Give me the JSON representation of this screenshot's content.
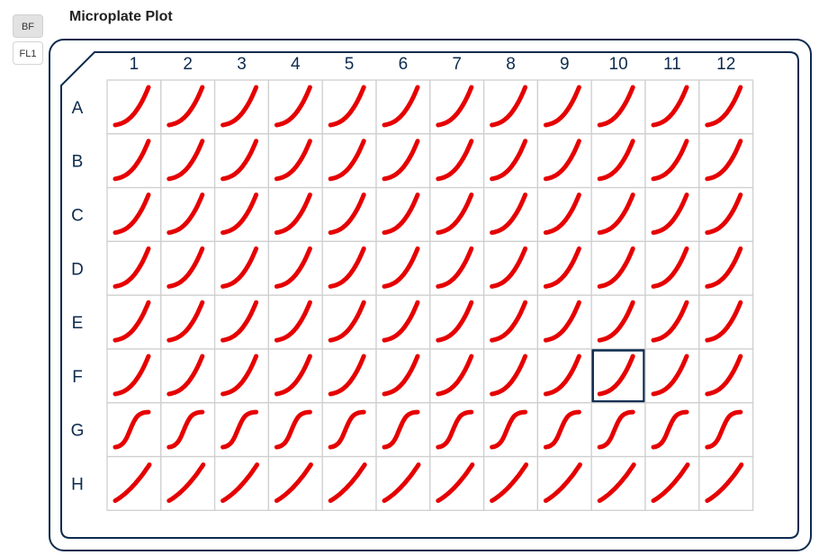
{
  "title": "Microplate Plot",
  "tabs": [
    {
      "label": "BF",
      "active": true
    },
    {
      "label": "FL1",
      "active": false
    }
  ],
  "plate": {
    "columns": [
      "1",
      "2",
      "3",
      "4",
      "5",
      "6",
      "7",
      "8",
      "9",
      "10",
      "11",
      "12"
    ],
    "rows": [
      "A",
      "B",
      "C",
      "D",
      "E",
      "F",
      "G",
      "H"
    ],
    "selected_well": {
      "row": "F",
      "column": "10"
    }
  },
  "colors": {
    "curve": "#e60000",
    "border": "#0d2b4e",
    "well_border": "#cfcfcf",
    "selected": "#0d2b4e"
  }
}
